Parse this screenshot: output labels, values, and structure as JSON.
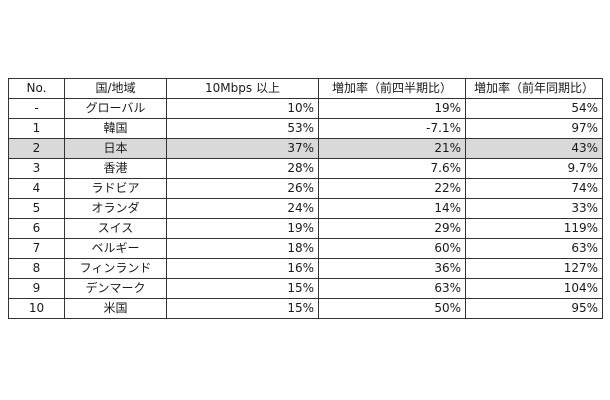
{
  "table": {
    "headers": [
      "No.",
      "国/地域",
      "10Mbps 以上",
      "増加率（前四半期比）",
      "増加率（前年同期比）"
    ],
    "rows": [
      {
        "no": "-",
        "region": "グローバル",
        "speed": "10%",
        "qoq": "19%",
        "yoy": "54%"
      },
      {
        "no": "1",
        "region": "韓国",
        "speed": "53%",
        "qoq": "-7.1%",
        "yoy": "97%"
      },
      {
        "no": "2",
        "region": "日本",
        "speed": "37%",
        "qoq": "21%",
        "yoy": "43%"
      },
      {
        "no": "3",
        "region": "香港",
        "speed": "28%",
        "qoq": "7.6%",
        "yoy": "9.7%"
      },
      {
        "no": "4",
        "region": "ラドビア",
        "speed": "26%",
        "qoq": "22%",
        "yoy": "74%"
      },
      {
        "no": "5",
        "region": "オランダ",
        "speed": "24%",
        "qoq": "14%",
        "yoy": "33%"
      },
      {
        "no": "6",
        "region": "スイス",
        "speed": "19%",
        "qoq": "29%",
        "yoy": "119%"
      },
      {
        "no": "7",
        "region": "ベルギー",
        "speed": "18%",
        "qoq": "60%",
        "yoy": "63%"
      },
      {
        "no": "8",
        "region": "フィンランド",
        "speed": "16%",
        "qoq": "36%",
        "yoy": "127%"
      },
      {
        "no": "9",
        "region": "デンマーク",
        "speed": "15%",
        "qoq": "63%",
        "yoy": "104%"
      },
      {
        "no": "10",
        "region": "米国",
        "speed": "15%",
        "qoq": "50%",
        "yoy": "95%"
      }
    ],
    "highlight_row_index": 2,
    "highlight_color": "#d9d9d9"
  }
}
